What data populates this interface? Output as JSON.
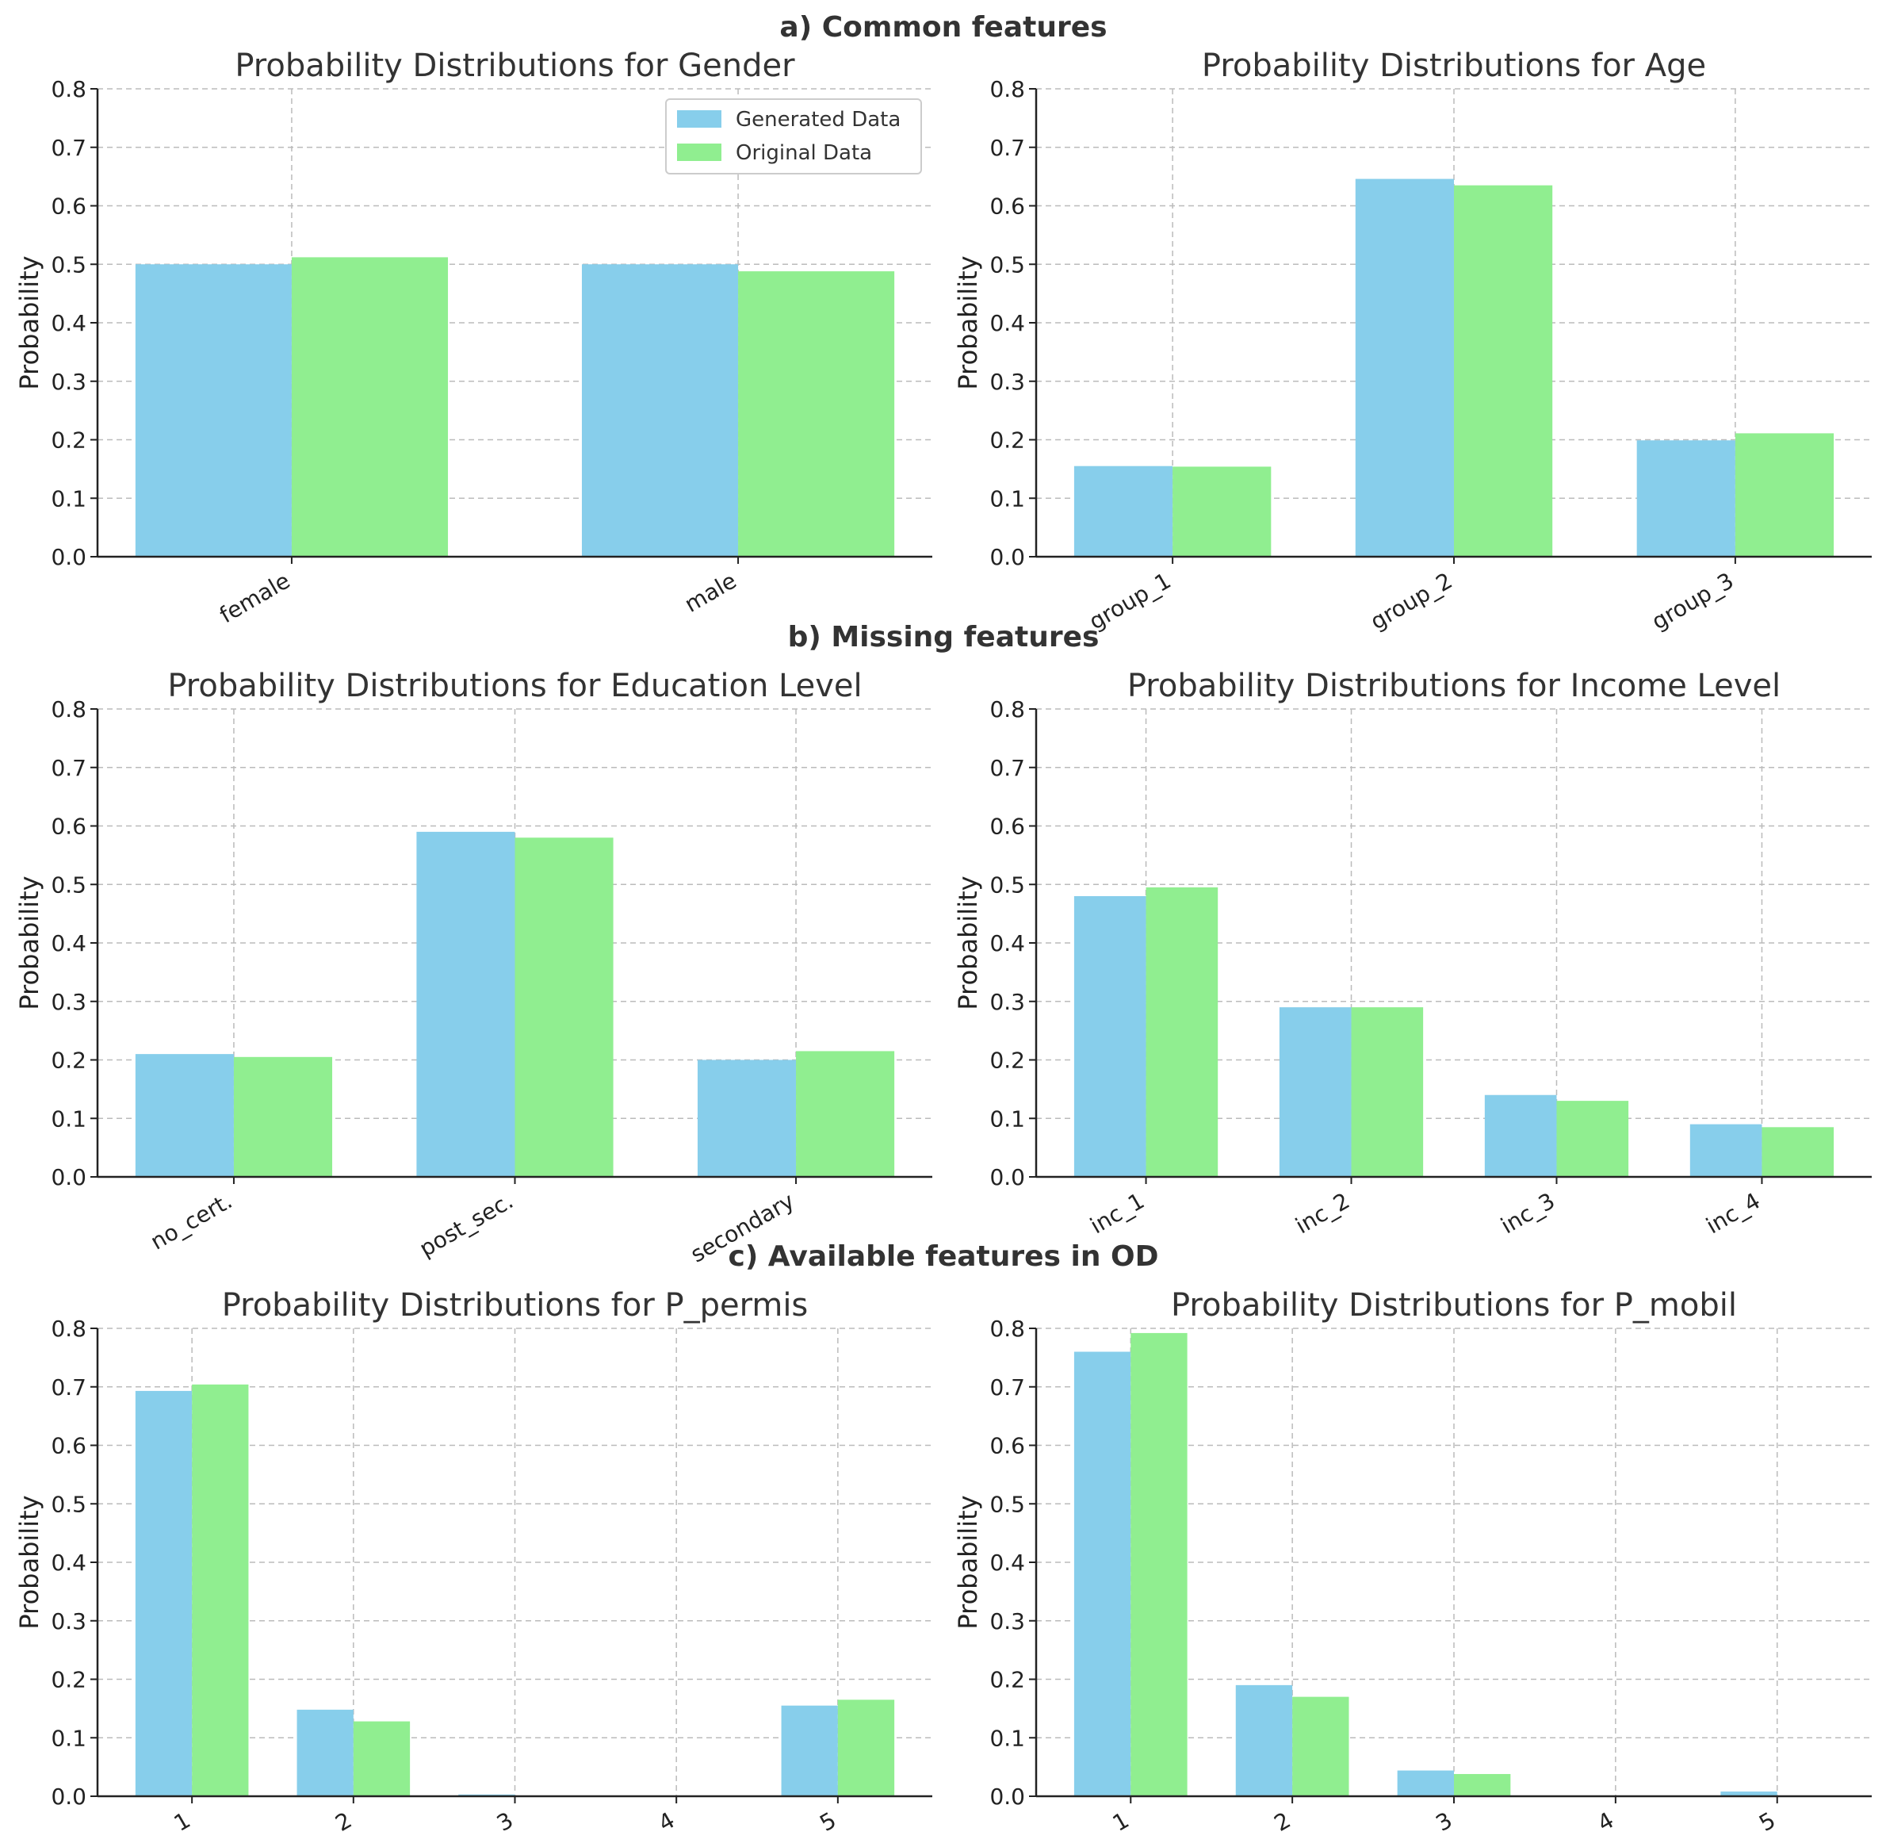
{
  "sections": [
    "a) Common features",
    "b) Missing features",
    "c) Available features in OD"
  ],
  "colors": {
    "generated": "#87CEEB",
    "original": "#90EE90"
  },
  "legend": {
    "placement": "top-right",
    "entries": [
      "Generated Data",
      "Original Data"
    ]
  },
  "chart_data": [
    {
      "type": "bar",
      "title": "Probability Distributions for Gender",
      "ylabel": "Probability",
      "ylim": [
        0,
        0.8
      ],
      "yticks": [
        "0.0",
        "0.1",
        "0.2",
        "0.3",
        "0.4",
        "0.5",
        "0.6",
        "0.7",
        "0.8"
      ],
      "grid": true,
      "categories": [
        "female",
        "male"
      ],
      "series": [
        {
          "name": "Generated Data",
          "values": [
            0.5,
            0.5
          ]
        },
        {
          "name": "Original Data",
          "values": [
            0.512,
            0.488
          ]
        }
      ]
    },
    {
      "type": "bar",
      "title": "Probability Distributions for Age",
      "ylabel": "Probability",
      "ylim": [
        0,
        0.8
      ],
      "yticks": [
        "0.0",
        "0.1",
        "0.2",
        "0.3",
        "0.4",
        "0.5",
        "0.6",
        "0.7",
        "0.8"
      ],
      "grid": true,
      "categories": [
        "group_1",
        "group_2",
        "group_3"
      ],
      "series": [
        {
          "name": "Generated Data",
          "values": [
            0.155,
            0.646,
            0.199
          ]
        },
        {
          "name": "Original Data",
          "values": [
            0.154,
            0.635,
            0.211
          ]
        }
      ]
    },
    {
      "type": "bar",
      "title": "Probability Distributions for Education Level",
      "ylabel": "Probability",
      "ylim": [
        0,
        0.8
      ],
      "yticks": [
        "0.0",
        "0.1",
        "0.2",
        "0.3",
        "0.4",
        "0.5",
        "0.6",
        "0.7",
        "0.8"
      ],
      "grid": true,
      "categories": [
        "no_cert.",
        "post_sec.",
        "secondary"
      ],
      "series": [
        {
          "name": "Generated Data",
          "values": [
            0.21,
            0.59,
            0.2
          ]
        },
        {
          "name": "Original Data",
          "values": [
            0.205,
            0.58,
            0.215
          ]
        }
      ]
    },
    {
      "type": "bar",
      "title": "Probability Distributions for Income Level",
      "ylabel": "Probability",
      "ylim": [
        0,
        0.8
      ],
      "yticks": [
        "0.0",
        "0.1",
        "0.2",
        "0.3",
        "0.4",
        "0.5",
        "0.6",
        "0.7",
        "0.8"
      ],
      "grid": true,
      "categories": [
        "inc_1",
        "inc_2",
        "inc_3",
        "inc_4"
      ],
      "series": [
        {
          "name": "Generated Data",
          "values": [
            0.48,
            0.29,
            0.14,
            0.09
          ]
        },
        {
          "name": "Original Data",
          "values": [
            0.495,
            0.29,
            0.13,
            0.085
          ]
        }
      ]
    },
    {
      "type": "bar",
      "title": "Probability Distributions for P_permis",
      "ylabel": "Probability",
      "ylim": [
        0,
        0.8
      ],
      "yticks": [
        "0.0",
        "0.1",
        "0.2",
        "0.3",
        "0.4",
        "0.5",
        "0.6",
        "0.7",
        "0.8"
      ],
      "grid": true,
      "categories": [
        "1",
        "2",
        "3",
        "4",
        "5"
      ],
      "series": [
        {
          "name": "Generated Data",
          "values": [
            0.693,
            0.148,
            0.003,
            0.0,
            0.155
          ]
        },
        {
          "name": "Original Data",
          "values": [
            0.704,
            0.128,
            0.0,
            0.0,
            0.165
          ]
        }
      ]
    },
    {
      "type": "bar",
      "title": "Probability Distributions for P_mobil",
      "ylabel": "Probability",
      "ylim": [
        0,
        0.8
      ],
      "yticks": [
        "0.0",
        "0.1",
        "0.2",
        "0.3",
        "0.4",
        "0.5",
        "0.6",
        "0.7",
        "0.8"
      ],
      "grid": true,
      "categories": [
        "1",
        "2",
        "3",
        "4",
        "5"
      ],
      "series": [
        {
          "name": "Generated Data",
          "values": [
            0.76,
            0.19,
            0.044,
            0.0,
            0.008
          ]
        },
        {
          "name": "Original Data",
          "values": [
            0.792,
            0.17,
            0.038,
            0.0,
            0.0
          ]
        }
      ]
    }
  ]
}
